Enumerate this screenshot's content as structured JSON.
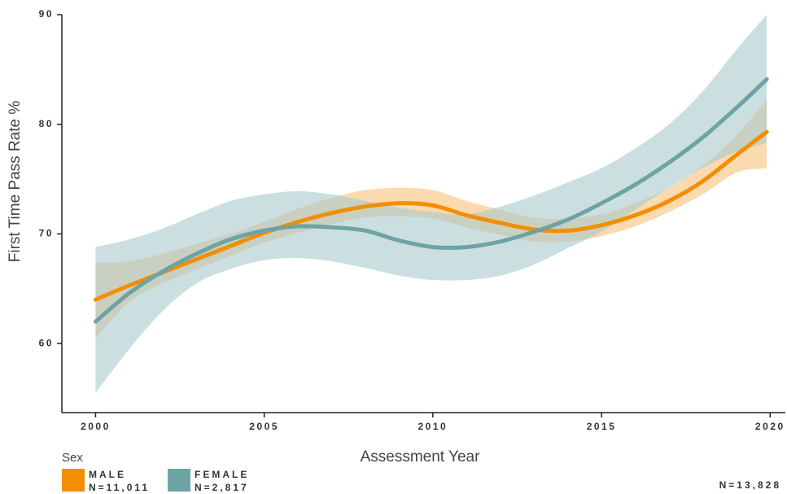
{
  "chart_data": {
    "type": "line",
    "x_label": "Assessment Year",
    "y_label": "First Time Pass Rate %",
    "legend_title": "Sex",
    "total_n": "N=13,828",
    "x": [
      2000,
      2001,
      2002,
      2003,
      2004,
      2005,
      2006,
      2007,
      2008,
      2009,
      2010,
      2011,
      2012,
      2013,
      2014,
      2015,
      2016,
      2017,
      2018,
      2019,
      2019.9
    ],
    "xlim": [
      1999,
      2020.5
    ],
    "xticks": [
      2000,
      2005,
      2010,
      2015,
      2020
    ],
    "ylim": [
      53.7,
      90
    ],
    "yticks": [
      60,
      70,
      80,
      90
    ],
    "series": [
      {
        "name": "MALE",
        "n_label": "N=11,011",
        "color": "#f28e00",
        "band_color": "#f9c27a",
        "values": [
          64.0,
          65.3,
          66.5,
          67.7,
          68.9,
          70.1,
          71.1,
          71.9,
          72.5,
          72.8,
          72.6,
          71.7,
          71.0,
          70.4,
          70.3,
          70.8,
          71.7,
          73.0,
          74.8,
          77.2,
          79.3
        ],
        "lower": [
          60.5,
          63.8,
          65.5,
          66.8,
          68.0,
          69.2,
          70.1,
          70.9,
          71.5,
          71.6,
          71.4,
          70.6,
          69.9,
          69.3,
          69.3,
          69.8,
          70.7,
          72.0,
          73.6,
          75.6,
          76.0
        ],
        "upper": [
          67.4,
          67.5,
          68.2,
          69.1,
          70.0,
          71.1,
          72.3,
          73.3,
          74.0,
          74.2,
          74.0,
          73.0,
          72.2,
          71.5,
          71.4,
          71.8,
          72.8,
          74.2,
          76.2,
          79.0,
          82.3
        ]
      },
      {
        "name": "FEMALE",
        "n_label": "N=2,817",
        "color": "#6ea3a6",
        "band_color": "#a9c9cd",
        "values": [
          62.0,
          64.6,
          66.6,
          68.2,
          69.5,
          70.3,
          70.7,
          70.6,
          70.3,
          69.4,
          68.8,
          68.8,
          69.3,
          70.2,
          71.3,
          72.8,
          74.5,
          76.5,
          78.8,
          81.5,
          84.1
        ],
        "lower": [
          55.5,
          59.5,
          63.0,
          65.5,
          66.8,
          67.6,
          67.8,
          67.5,
          66.9,
          66.2,
          65.8,
          65.8,
          66.2,
          67.2,
          68.7,
          70.2,
          72.2,
          74.2,
          76.0,
          77.5,
          78.3
        ],
        "upper": [
          68.8,
          69.5,
          70.5,
          71.8,
          73.0,
          73.6,
          73.9,
          73.6,
          73.0,
          72.4,
          72.0,
          71.8,
          72.5,
          73.5,
          74.7,
          76.0,
          77.8,
          80.0,
          83.0,
          86.8,
          90.0
        ]
      }
    ]
  }
}
